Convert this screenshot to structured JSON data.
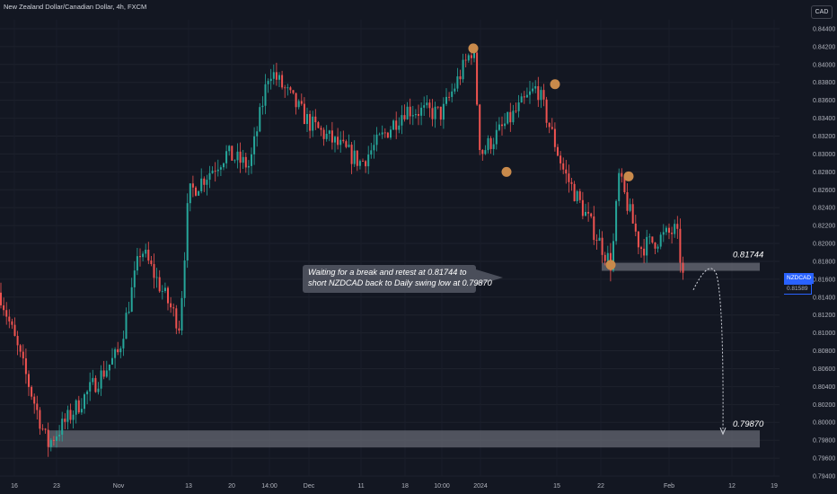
{
  "header": {
    "title": "New Zealand Dollar/Canadian Dollar, 4h, FXCM",
    "currency": "CAD"
  },
  "price_tag": {
    "symbol": "NZDCAD",
    "value": "0.81589"
  },
  "annotation": {
    "line1": "Waiting for a break and retest at 0.81744 to",
    "line2": "short NZDCAD back to Daily swing low at 0.79870"
  },
  "colors": {
    "up": "#26a69a",
    "down": "#ef5350",
    "background": "#131722",
    "zone": "#6b6e78",
    "marker": "#c98a4b"
  },
  "chart_data": {
    "type": "candlestick",
    "symbol": "NZDCAD",
    "timeframe": "4h",
    "ylim": [
      0.794,
      0.845
    ],
    "y_ticks": [
      "0.84400",
      "0.84200",
      "0.84000",
      "0.83800",
      "0.83600",
      "0.83400",
      "0.83200",
      "0.83000",
      "0.82800",
      "0.82600",
      "0.82400",
      "0.82200",
      "0.82000",
      "0.81800",
      "0.81600",
      "0.81400",
      "0.81200",
      "0.81000",
      "0.80800",
      "0.80600",
      "0.80400",
      "0.80200",
      "0.80000",
      "0.79800",
      "0.79600",
      "0.79400"
    ],
    "x_ticks": [
      "16",
      "23",
      "Nov",
      "13",
      "20",
      "14:00",
      "Dec",
      "11",
      "18",
      "10:00",
      "2024",
      "15",
      "22",
      "Feb",
      "12",
      "19"
    ],
    "price_path": [
      {
        "x": "16",
        "y": 0.8145
      },
      {
        "x": "23",
        "y": 0.7975
      },
      {
        "x": "Nov",
        "y": 0.8078
      },
      {
        "x": "Nov",
        "y": 0.8195
      },
      {
        "x": "13",
        "y": 0.8108
      },
      {
        "x": "13",
        "y": 0.8255
      },
      {
        "x": "20",
        "y": 0.83
      },
      {
        "x": "14:00",
        "y": 0.8286
      },
      {
        "x": "14:00",
        "y": 0.8395
      },
      {
        "x": "Dec",
        "y": 0.8335
      },
      {
        "x": "11",
        "y": 0.829
      },
      {
        "x": "18",
        "y": 0.835
      },
      {
        "x": "10:00",
        "y": 0.8345
      },
      {
        "x": "2024",
        "y": 0.842
      },
      {
        "x": "2024",
        "y": 0.83
      },
      {
        "x": "15",
        "y": 0.8375
      },
      {
        "x": "15",
        "y": 0.828
      },
      {
        "x": "22",
        "y": 0.8175
      },
      {
        "x": "22",
        "y": 0.8275
      },
      {
        "x": "Feb",
        "y": 0.8195
      },
      {
        "x": "Feb",
        "y": 0.8215
      },
      {
        "x": "Feb",
        "y": 0.8159
      }
    ],
    "levels": [
      {
        "label": "0.81744",
        "price": 0.81744
      },
      {
        "label": "0.79870",
        "price": 0.7987
      }
    ],
    "swing_markers": [
      {
        "x": "2024",
        "price": 0.8418
      },
      {
        "x": "2024",
        "price": 0.828
      },
      {
        "x": "15",
        "price": 0.8378
      },
      {
        "x": "22",
        "price": 0.8275
      },
      {
        "x": "22",
        "price": 0.8176
      }
    ],
    "last_price": 0.81589
  }
}
